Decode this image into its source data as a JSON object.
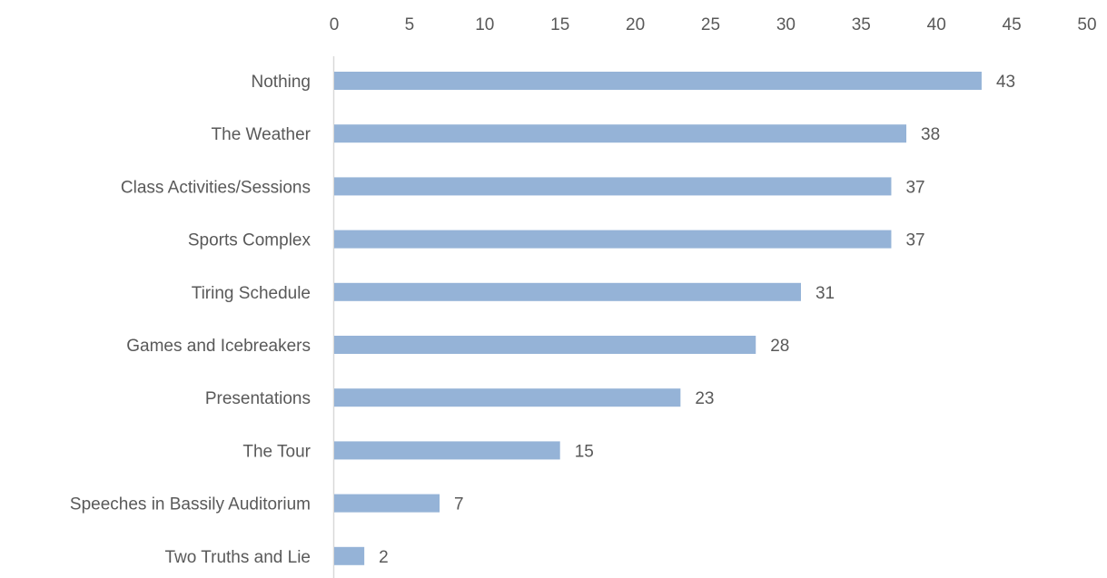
{
  "chart_data": {
    "type": "bar",
    "orientation": "horizontal",
    "categories": [
      "Nothing",
      "The Weather",
      "Class Activities/Sessions",
      "Sports Complex",
      "Tiring Schedule",
      "Games and Icebreakers",
      "Presentations",
      "The Tour",
      "Speeches in Bassily Auditorium",
      "Two Truths and  Lie"
    ],
    "values": [
      43,
      38,
      37,
      37,
      31,
      28,
      23,
      15,
      7,
      2
    ],
    "xlim": [
      0,
      50
    ],
    "x_ticks": [
      0,
      5,
      10,
      15,
      20,
      25,
      30,
      35,
      40,
      45,
      50
    ],
    "x_axis_position": "top",
    "grid": false,
    "legend": "none",
    "data_labels": true,
    "bar_color": "#95b3d7",
    "axis_color": "#d9d9d9",
    "text_color": "#595959"
  }
}
